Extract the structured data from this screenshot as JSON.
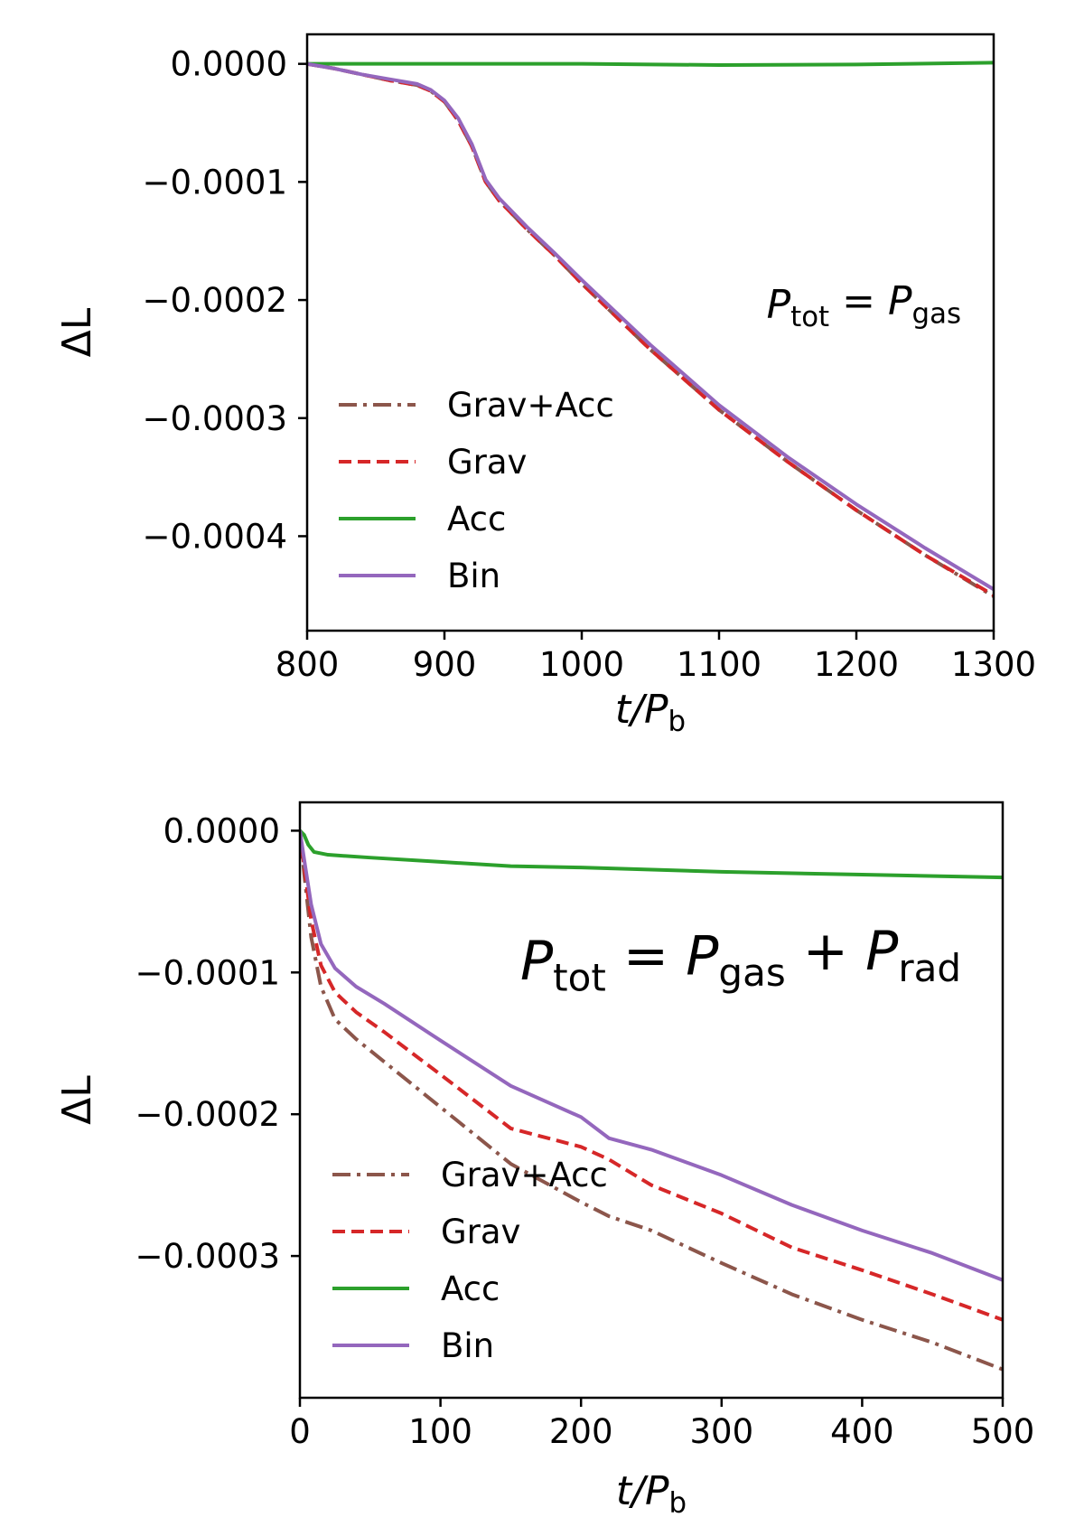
{
  "colors": {
    "grav_acc": "#8c564b",
    "grav": "#d62728",
    "acc": "#2ca02c",
    "bin": "#9467bd",
    "axes": "#000000",
    "background": "#ffffff"
  },
  "chart_data": [
    {
      "type": "line",
      "annotation": {
        "main": "P",
        "sub1": "tot",
        "eq": "=",
        "main2": "P",
        "sub2": "gas"
      },
      "xlabel": {
        "main": "t/P",
        "sub": "b"
      },
      "ylabel": "ΔL",
      "xlim": [
        800,
        1300
      ],
      "ylim": [
        -0.00048,
        2.5e-05
      ],
      "xticks": [
        800,
        900,
        1000,
        1100,
        1200,
        1300
      ],
      "xtick_labels": [
        "800",
        "900",
        "1000",
        "1100",
        "1200",
        "1300"
      ],
      "yticks": [
        0,
        -0.0001,
        -0.0002,
        -0.0003,
        -0.0004
      ],
      "ytick_labels": [
        "0.0000",
        "−0.0001",
        "−0.0002",
        "−0.0003",
        "−0.0004"
      ],
      "legend": {
        "placement": "lower-left",
        "entries": [
          "Grav+Acc",
          "Grav",
          "Acc",
          "Bin"
        ]
      },
      "series": [
        {
          "name": "Grav+Acc",
          "style": "dashdot",
          "color_key": "grav_acc",
          "x": [
            800,
            820,
            840,
            860,
            880,
            890,
            900,
            910,
            920,
            930,
            940,
            960,
            980,
            1000,
            1050,
            1100,
            1150,
            1200,
            1250,
            1300
          ],
          "y": [
            0,
            -4e-06,
            -9e-06,
            -1.4e-05,
            -1.8e-05,
            -2.3e-05,
            -3.2e-05,
            -4.8e-05,
            -7e-05,
            -0.0001,
            -0.000116,
            -0.00014,
            -0.000162,
            -0.000186,
            -0.000242,
            -0.000293,
            -0.000337,
            -0.000378,
            -0.000416,
            -0.000451
          ]
        },
        {
          "name": "Grav",
          "style": "dashed",
          "color_key": "grav",
          "x": [
            800,
            820,
            840,
            860,
            880,
            890,
            900,
            910,
            920,
            930,
            940,
            960,
            980,
            1000,
            1050,
            1100,
            1150,
            1200,
            1250,
            1300
          ],
          "y": [
            0,
            -4e-06,
            -9e-06,
            -1.4e-05,
            -1.8e-05,
            -2.3e-05,
            -3.2e-05,
            -4.8e-05,
            -7e-05,
            -0.0001,
            -0.000116,
            -0.00014,
            -0.000162,
            -0.000186,
            -0.000242,
            -0.000293,
            -0.000337,
            -0.000378,
            -0.000416,
            -0.00045
          ]
        },
        {
          "name": "Acc",
          "style": "solid",
          "color_key": "acc",
          "x": [
            800,
            900,
            1000,
            1100,
            1200,
            1300
          ],
          "y": [
            0,
            0,
            0,
            -1e-06,
            -5e-07,
            1e-06
          ]
        },
        {
          "name": "Bin",
          "style": "solid",
          "color_key": "bin",
          "x": [
            800,
            820,
            840,
            860,
            880,
            890,
            900,
            910,
            920,
            930,
            940,
            960,
            980,
            1000,
            1050,
            1100,
            1150,
            1200,
            1250,
            1300
          ],
          "y": [
            0,
            -4e-06,
            -9e-06,
            -1.3e-05,
            -1.7e-05,
            -2.2e-05,
            -3.1e-05,
            -4.6e-05,
            -6.8e-05,
            -9.8e-05,
            -0.000114,
            -0.000138,
            -0.00016,
            -0.000183,
            -0.000238,
            -0.000289,
            -0.000333,
            -0.000373,
            -0.00041,
            -0.000445
          ]
        }
      ]
    },
    {
      "type": "line",
      "annotation": {
        "main": "P",
        "sub1": "tot",
        "eq": "=",
        "main2": "P",
        "sub2": "gas",
        "plus": "+",
        "main3": "P",
        "sub3": "rad"
      },
      "xlabel": {
        "main": "t/P",
        "sub": "b"
      },
      "ylabel": "ΔL",
      "xlim": [
        0,
        500
      ],
      "ylim": [
        -0.0004,
        2e-05
      ],
      "xticks": [
        0,
        100,
        200,
        300,
        400,
        500
      ],
      "xtick_labels": [
        "0",
        "100",
        "200",
        "300",
        "400",
        "500"
      ],
      "yticks": [
        0,
        -0.0001,
        -0.0002,
        -0.0003
      ],
      "ytick_labels": [
        "0.0000",
        "−0.0001",
        "−0.0002",
        "−0.0003"
      ],
      "legend": {
        "placement": "lower-left",
        "entries": [
          "Grav+Acc",
          "Grav",
          "Acc",
          "Bin"
        ]
      },
      "series": [
        {
          "name": "Grav+Acc",
          "style": "dashdot",
          "color_key": "grav_acc",
          "x": [
            0,
            3,
            8,
            15,
            25,
            40,
            60,
            100,
            150,
            200,
            220,
            250,
            300,
            350,
            400,
            450,
            500
          ],
          "y": [
            0,
            -3e-05,
            -7.5e-05,
            -0.00011,
            -0.000133,
            -0.000147,
            -0.000163,
            -0.000195,
            -0.000235,
            -0.000262,
            -0.000272,
            -0.000282,
            -0.000305,
            -0.000327,
            -0.000345,
            -0.000361,
            -0.00038
          ]
        },
        {
          "name": "Grav",
          "style": "dashed",
          "color_key": "grav",
          "x": [
            0,
            3,
            8,
            15,
            25,
            40,
            60,
            100,
            150,
            200,
            220,
            250,
            300,
            350,
            400,
            450,
            500
          ],
          "y": [
            0,
            -2.5e-05,
            -6.3e-05,
            -9.5e-05,
            -0.000114,
            -0.000128,
            -0.000142,
            -0.000172,
            -0.00021,
            -0.000223,
            -0.000232,
            -0.00025,
            -0.00027,
            -0.000294,
            -0.00031,
            -0.000327,
            -0.000345
          ]
        },
        {
          "name": "Acc",
          "style": "solid",
          "color_key": "acc",
          "x": [
            0,
            3,
            6,
            10,
            20,
            50,
            100,
            150,
            200,
            300,
            400,
            500
          ],
          "y": [
            0,
            -3e-06,
            -1e-05,
            -1.5e-05,
            -1.7e-05,
            -1.9e-05,
            -2.2e-05,
            -2.5e-05,
            -2.6e-05,
            -2.9e-05,
            -3.1e-05,
            -3.3e-05
          ]
        },
        {
          "name": "Bin",
          "style": "solid",
          "color_key": "bin",
          "x": [
            0,
            3,
            8,
            15,
            25,
            40,
            60,
            100,
            150,
            200,
            220,
            250,
            300,
            350,
            400,
            450,
            500
          ],
          "y": [
            0,
            -2e-05,
            -5.2e-05,
            -8e-05,
            -9.7e-05,
            -0.00011,
            -0.000122,
            -0.000148,
            -0.00018,
            -0.000202,
            -0.000217,
            -0.000225,
            -0.000243,
            -0.000264,
            -0.000282,
            -0.000298,
            -0.000317
          ]
        }
      ]
    }
  ]
}
